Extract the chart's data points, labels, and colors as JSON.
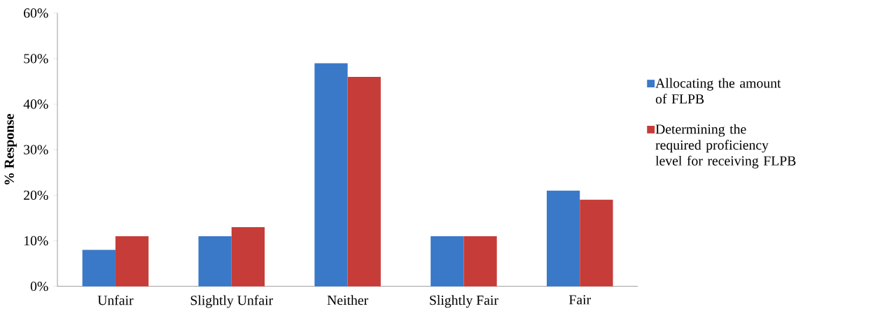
{
  "chart_data": {
    "type": "bar",
    "ylabel": "% Response",
    "categories": [
      "Unfair",
      "Slightly Unfair",
      "Neither",
      "Slightly Fair",
      "Fair"
    ],
    "series": [
      {
        "name": "Allocating the amount of FLPB",
        "color": "#3a78c8",
        "values": [
          8,
          11,
          49,
          11,
          21
        ]
      },
      {
        "name": "Determining the required proficiency level for receiving FLPB",
        "color": "#c63c38",
        "values": [
          11,
          13,
          46,
          11,
          19
        ]
      }
    ],
    "ylim": [
      0,
      60
    ],
    "yticks": [
      {
        "value": 0,
        "label": "0%"
      },
      {
        "value": 10,
        "label": "10%"
      },
      {
        "value": 20,
        "label": "20%"
      },
      {
        "value": 30,
        "label": "30%"
      },
      {
        "value": 40,
        "label": "40%"
      },
      {
        "value": 50,
        "label": "50%"
      },
      {
        "value": 60,
        "label": "60%"
      }
    ],
    "grid": false,
    "legend": "right"
  }
}
